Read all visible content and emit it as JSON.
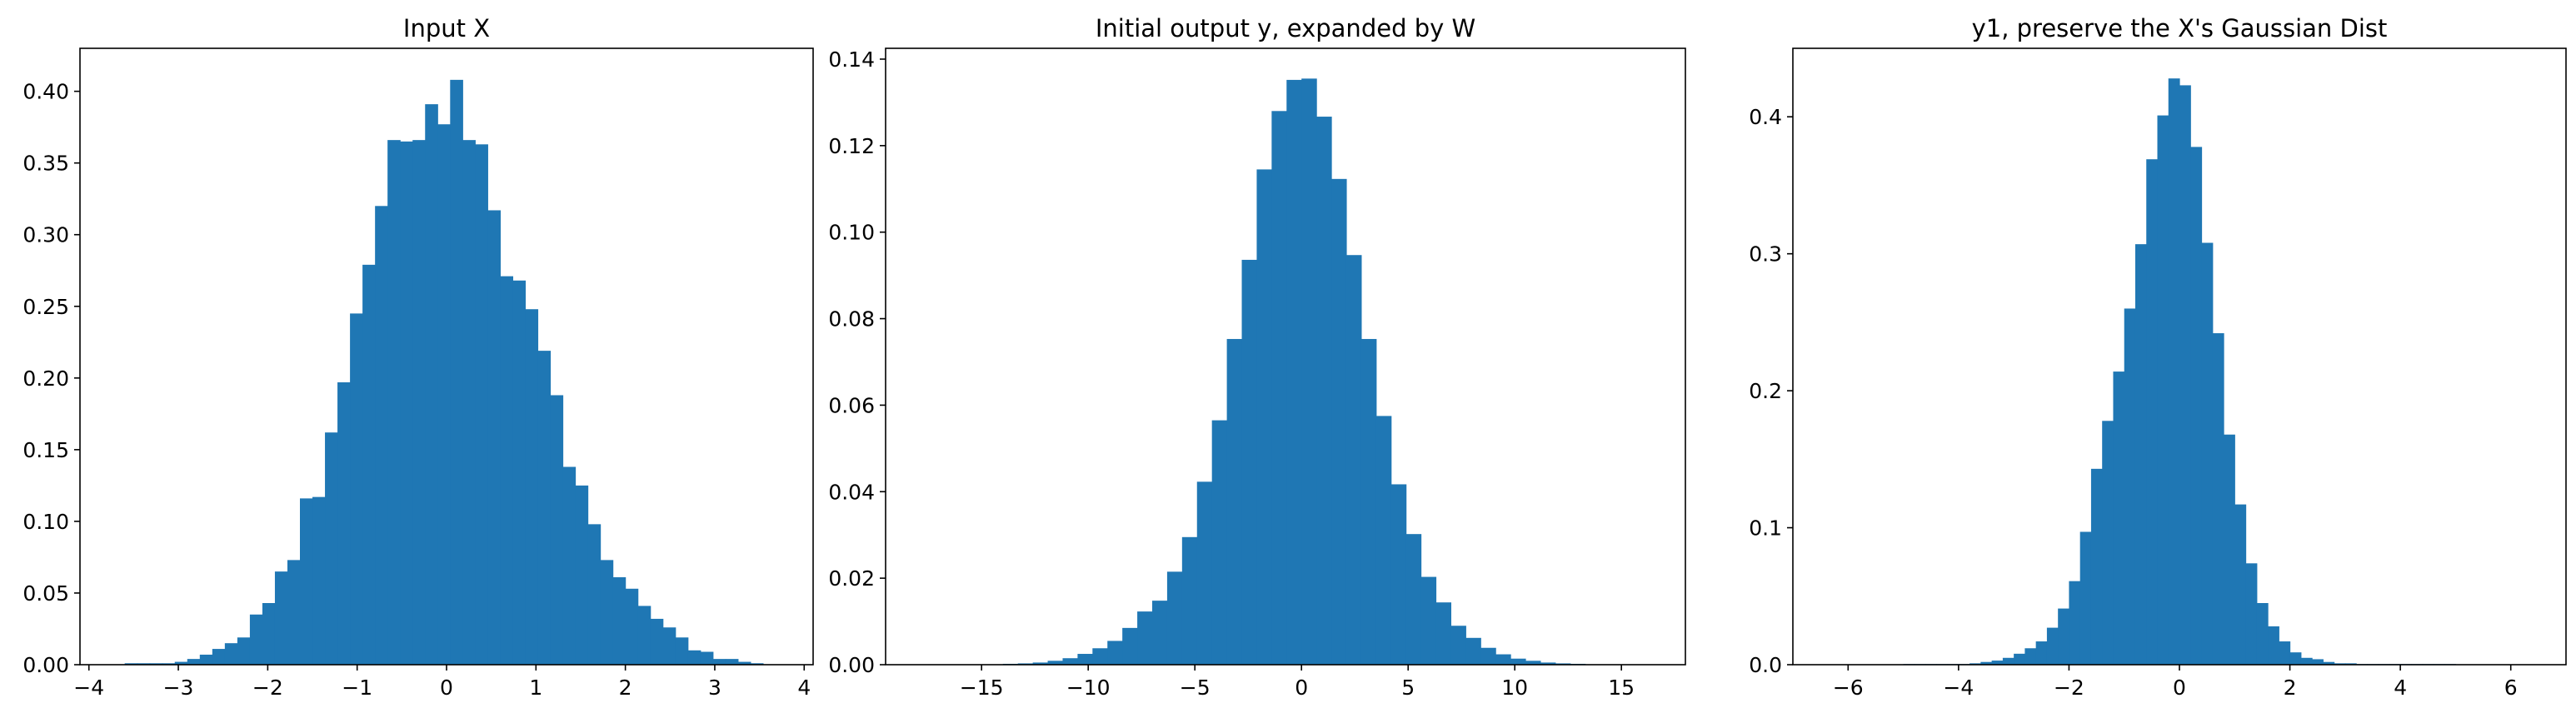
{
  "chart_data": [
    {
      "type": "bar",
      "title": "Input X",
      "xlabel": "",
      "ylabel": "",
      "color": "#1f77b4",
      "grid": false,
      "xlim": [
        -4.1,
        4.1
      ],
      "ylim": [
        0,
        0.43
      ],
      "xticks": [
        -4,
        -3,
        -2,
        -1,
        0,
        1,
        2,
        3,
        4
      ],
      "yticks": [
        0.0,
        0.05,
        0.1,
        0.15,
        0.2,
        0.25,
        0.3,
        0.35,
        0.4
      ],
      "ytick_decimals": 2,
      "bin_start": -3.6,
      "bin_width": 0.14,
      "values": [
        0.001,
        0.001,
        0.001,
        0.001,
        0.002,
        0.004,
        0.007,
        0.011,
        0.015,
        0.019,
        0.035,
        0.043,
        0.065,
        0.073,
        0.116,
        0.117,
        0.162,
        0.197,
        0.245,
        0.279,
        0.32,
        0.366,
        0.365,
        0.366,
        0.391,
        0.377,
        0.408,
        0.366,
        0.363,
        0.317,
        0.271,
        0.268,
        0.248,
        0.219,
        0.188,
        0.138,
        0.125,
        0.098,
        0.073,
        0.061,
        0.053,
        0.041,
        0.032,
        0.026,
        0.019,
        0.01,
        0.009,
        0.004,
        0.004,
        0.002,
        0.001
      ]
    },
    {
      "type": "bar",
      "title": "Initial output y, expanded by W",
      "xlabel": "",
      "ylabel": "",
      "color": "#1f77b4",
      "grid": false,
      "xlim": [
        -19.5,
        18.0
      ],
      "ylim": [
        0,
        0.1425
      ],
      "xticks": [
        -15,
        -10,
        -5,
        0,
        5,
        10,
        15
      ],
      "yticks": [
        0.0,
        0.02,
        0.04,
        0.06,
        0.08,
        0.1,
        0.12,
        0.14
      ],
      "ytick_decimals": 2,
      "bin_start": -17.5,
      "bin_width": 0.7,
      "values": [
        0.0001,
        0.0001,
        0.0001,
        0.0001,
        0.0001,
        0.0002,
        0.0003,
        0.0005,
        0.0009,
        0.0015,
        0.0025,
        0.0038,
        0.0055,
        0.0085,
        0.0123,
        0.0148,
        0.0215,
        0.0295,
        0.0423,
        0.0565,
        0.0753,
        0.0936,
        0.1145,
        0.128,
        0.1352,
        0.1355,
        0.1267,
        0.1123,
        0.0947,
        0.0753,
        0.0575,
        0.0417,
        0.0302,
        0.0203,
        0.0144,
        0.009,
        0.0062,
        0.0039,
        0.0024,
        0.0014,
        0.0009,
        0.0005,
        0.0003,
        0.0002,
        0.0001,
        0.0001,
        0.0001,
        0.0001,
        0.0001
      ]
    },
    {
      "type": "bar",
      "title": "y1, preserve the X's Gaussian Dist",
      "xlabel": "",
      "ylabel": "",
      "color": "#1f77b4",
      "grid": false,
      "xlim": [
        -7.0,
        7.0
      ],
      "ylim": [
        0,
        0.45
      ],
      "xticks": [
        -6,
        -4,
        -2,
        0,
        2,
        4,
        6
      ],
      "yticks": [
        0.0,
        0.1,
        0.2,
        0.3,
        0.4
      ],
      "ytick_decimals": 1,
      "bin_start": -5.0,
      "bin_width": 0.2,
      "values": [
        0.0005,
        0.0005,
        0.0005,
        0.0005,
        0.0005,
        0.0005,
        0.001,
        0.002,
        0.003,
        0.005,
        0.008,
        0.012,
        0.017,
        0.027,
        0.041,
        0.061,
        0.097,
        0.143,
        0.178,
        0.214,
        0.26,
        0.307,
        0.369,
        0.401,
        0.428,
        0.423,
        0.378,
        0.308,
        0.242,
        0.168,
        0.117,
        0.074,
        0.045,
        0.028,
        0.017,
        0.009,
        0.005,
        0.004,
        0.002,
        0.001,
        0.001,
        0.0005,
        0.0005,
        0.0005,
        0.0005,
        0.0005,
        0.0005,
        0.0005,
        0.0005,
        0.0005
      ]
    }
  ]
}
